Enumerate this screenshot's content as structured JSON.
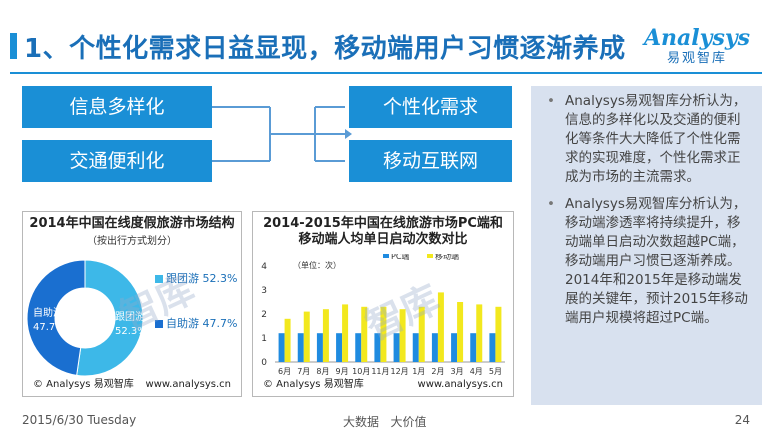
{
  "title": "1、个性化需求日益显现，移动端用户习惯逐渐养成",
  "logo": {
    "brand": "Analysys",
    "sub": "易观智库"
  },
  "boxes": {
    "b1": "信息多样化",
    "b2": "交通便利化",
    "b3": "个性化需求",
    "b4": "移动互联网"
  },
  "notes": [
    "Analysys易观智库分析认为，信息的多样化以及交通的便利化等条件大大降低了个性化需求的实现难度，个性化需求正成为市场的主流需求。",
    "Analysys易观智库分析认为，移动端渗透率将持续提升，移动端单日启动次数超越PC端， 移动端用户习惯已逐渐养成。2014年和2015年是移动端发展的关键年，预计2015年移动端用户规模将超过PC端。"
  ],
  "pie": {
    "title": "2014年中国在线度假旅游市场结构",
    "subtitle": "（按出行方式划分）",
    "legend": [
      {
        "name": "跟团游 52.3%",
        "color": "#3db8e8"
      },
      {
        "name": "自助游 47.7%",
        "color": "#1a6fd0"
      }
    ],
    "labels": {
      "inner_left": "自助游\n47.7%",
      "inner_right": "跟团游\n52.3%"
    },
    "watermark": "智库",
    "footer_left": "© Analysys 易观智库",
    "footer_right": "www.analysys.cn"
  },
  "bar": {
    "title": "2014-2015年中国在线旅游市场PC端和移动端人均单日启动次数对比",
    "unit": "（单位：次）",
    "watermark": "智库",
    "footer_left": "© Analysys 易观智库",
    "footer_right": "www.analysys.cn"
  },
  "chart_data": [
    {
      "type": "pie",
      "title": "2014年中国在线度假旅游市场结构",
      "subtitle": "（按出行方式划分）",
      "categories": [
        "跟团游",
        "自助游"
      ],
      "values": [
        52.3,
        47.7
      ],
      "colors": [
        "#3db8e8",
        "#1a6fd0"
      ],
      "legend": "right"
    },
    {
      "type": "bar",
      "title": "2014-2015年中国在线旅游市场PC端和移动端人均单日启动次数对比",
      "ylabel": "（单位：次）",
      "categories": [
        "6月",
        "7月",
        "8月",
        "9月",
        "10月",
        "11月",
        "12月",
        "1月",
        "2月",
        "3月",
        "4月",
        "5月"
      ],
      "series": [
        {
          "name": "PC端",
          "color": "#1f8be0",
          "values": [
            1.2,
            1.2,
            1.2,
            1.2,
            1.2,
            1.2,
            1.2,
            1.2,
            1.2,
            1.2,
            1.2,
            1.2
          ]
        },
        {
          "name": "移动端",
          "color": "#f2e81e",
          "values": [
            1.8,
            2.1,
            2.2,
            2.4,
            2.3,
            2.3,
            2.2,
            2.3,
            2.9,
            2.5,
            2.4,
            2.3
          ]
        }
      ],
      "ylim": [
        0,
        4
      ],
      "yticks": [
        "0",
        "1",
        "2",
        "3",
        "4"
      ],
      "legend": "top"
    }
  ],
  "footer": {
    "date": "2015/6/30 Tuesday",
    "center": "大数据   大价值",
    "page": "24"
  }
}
